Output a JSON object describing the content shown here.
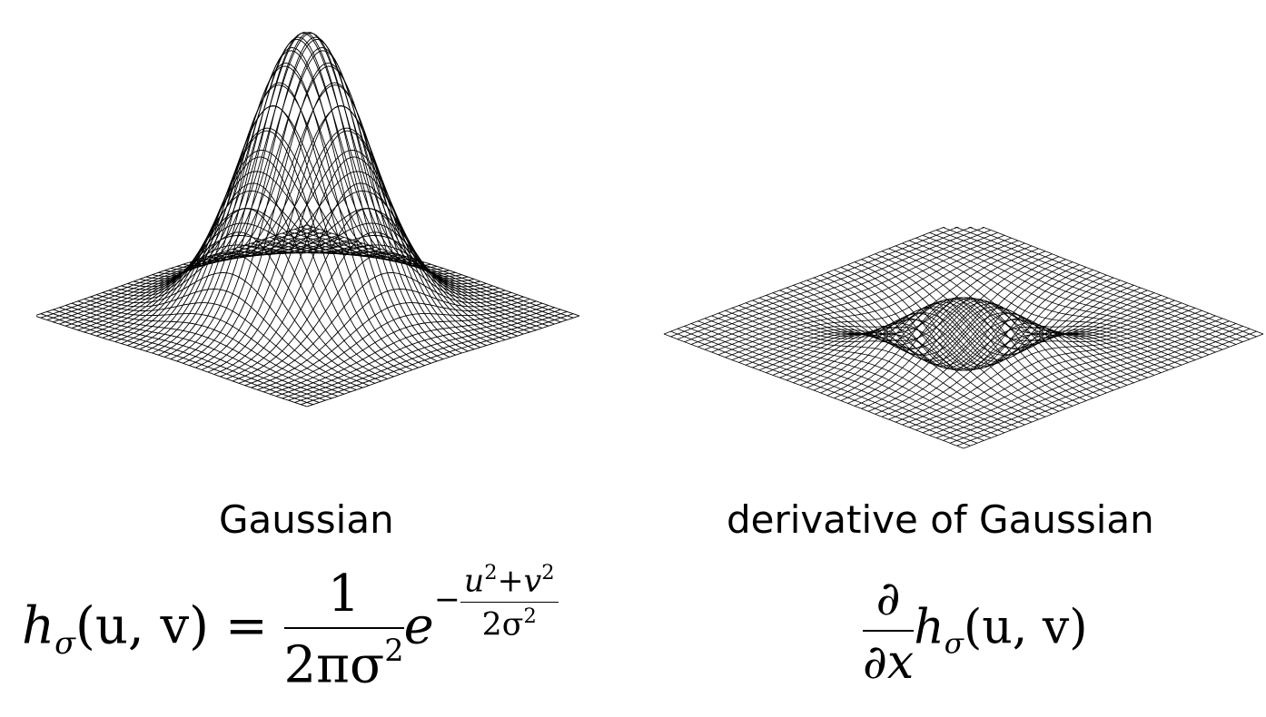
{
  "captions": {
    "gaussian": "Gaussian",
    "derivative": "derivative of Gaussian"
  },
  "formulas": {
    "gaussian": {
      "lhs_h": "h",
      "lhs_sub": "σ",
      "lhs_args": "(u, v)",
      "equals": "=",
      "frac_num": "1",
      "frac_den": "2πσ",
      "frac_den_sup": "2",
      "base": "e",
      "exp_sign": "−",
      "exp_num_u": "u",
      "exp_num_u_sup": "2",
      "exp_plus": "+",
      "exp_num_v": "v",
      "exp_num_v_sup": "2",
      "exp_den": "2σ",
      "exp_den_sup": "2"
    },
    "derivative": {
      "frac_num": "∂",
      "frac_den": "∂x",
      "h": "h",
      "sub": "σ",
      "args": "(u, v)"
    }
  },
  "colors": {
    "background": "#ffffff",
    "mesh": "#000000"
  }
}
